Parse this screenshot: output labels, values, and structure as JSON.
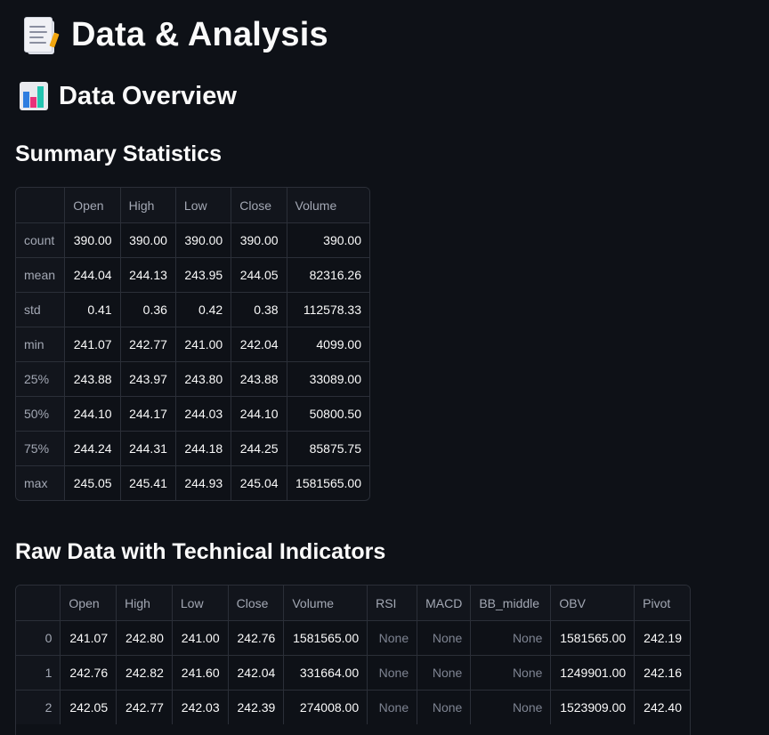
{
  "header": {
    "title": "Data & Analysis",
    "title_icon": "document-icon",
    "section_title": "Data Overview",
    "section_icon": "bar-chart-icon"
  },
  "summary": {
    "heading": "Summary Statistics",
    "columns": [
      "",
      "Open",
      "High",
      "Low",
      "Close",
      "Volume"
    ],
    "rows": [
      [
        "count",
        "390.00",
        "390.00",
        "390.00",
        "390.00",
        "390.00"
      ],
      [
        "mean",
        "244.04",
        "244.13",
        "243.95",
        "244.05",
        "82316.26"
      ],
      [
        "std",
        "0.41",
        "0.36",
        "0.42",
        "0.38",
        "112578.33"
      ],
      [
        "min",
        "241.07",
        "242.77",
        "241.00",
        "242.04",
        "4099.00"
      ],
      [
        "25%",
        "243.88",
        "243.97",
        "243.80",
        "243.88",
        "33089.00"
      ],
      [
        "50%",
        "244.10",
        "244.17",
        "244.03",
        "244.10",
        "50800.50"
      ],
      [
        "75%",
        "244.24",
        "244.31",
        "244.18",
        "244.25",
        "85875.75"
      ],
      [
        "max",
        "245.05",
        "245.41",
        "244.93",
        "245.04",
        "1581565.00"
      ]
    ]
  },
  "raw": {
    "heading": "Raw Data with Technical Indicators",
    "columns": [
      "",
      "Open",
      "High",
      "Low",
      "Close",
      "Volume",
      "RSI",
      "MACD",
      "BB_middle",
      "OBV",
      "Pivot"
    ],
    "rows": [
      [
        "0",
        "241.07",
        "242.80",
        "241.00",
        "242.76",
        "1581565.00",
        "None",
        "None",
        "None",
        "1581565.00",
        "242.19"
      ],
      [
        "1",
        "242.76",
        "242.82",
        "241.60",
        "242.04",
        "331664.00",
        "None",
        "None",
        "None",
        "1249901.00",
        "242.16"
      ],
      [
        "2",
        "242.05",
        "242.77",
        "242.03",
        "242.39",
        "274008.00",
        "None",
        "None",
        "None",
        "1523909.00",
        "242.40"
      ]
    ]
  }
}
